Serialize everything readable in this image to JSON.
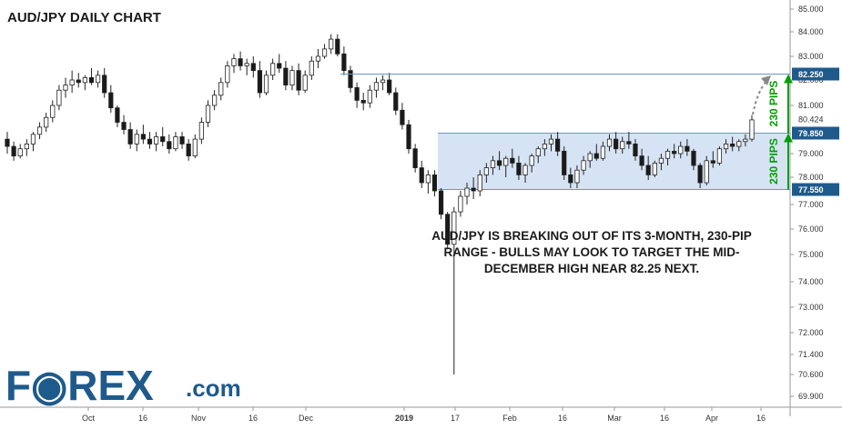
{
  "chart_data": {
    "type": "candlestick",
    "title": "AUD/JPY DAILY CHART",
    "y_ticks": [
      "85.000",
      "84.000",
      "83.000",
      "82.000",
      "81.000",
      "79.000",
      "78.000",
      "77.000",
      "76.000",
      "75.000",
      "74.000",
      "73.000",
      "72.000",
      "71.400",
      "70.600",
      "69.900"
    ],
    "ylim": [
      69.6,
      85.3
    ],
    "x_tick_labels": [
      "Oct",
      "16",
      "Nov",
      "16",
      "Dec",
      "2019",
      "17",
      "Feb",
      "16",
      "Mar",
      "16",
      "Apr",
      "16"
    ],
    "price_badges": [
      {
        "label": "82.250",
        "value": 82.25,
        "color": "#1e5a8c"
      },
      {
        "label": "80.424",
        "value": 80.424,
        "color": "plain"
      },
      {
        "label": "79.850",
        "value": 79.85,
        "color": "#1e5a8c"
      },
      {
        "label": "77.550",
        "value": 77.55,
        "color": "#1e5a8c"
      }
    ],
    "range_box": {
      "low": 77.55,
      "high": 79.85,
      "color": "#c8daf0"
    },
    "target_line": 82.25,
    "pips_labels": [
      "230 PIPS",
      "230 PIPS"
    ],
    "annotation": [
      "AUD/JPY IS BREAKING OUT OF ITS 3-MONTH, 230-PIP",
      "RANGE - BULLS MAY LOOK TO TARGET THE MID-",
      "DECEMBER HIGH NEAR 82.25 NEXT."
    ],
    "ohlc": [
      [
        79.6,
        79.9,
        79.0,
        79.3
      ],
      [
        79.3,
        79.5,
        78.7,
        78.9
      ],
      [
        78.9,
        79.4,
        78.8,
        79.2
      ],
      [
        79.2,
        79.6,
        78.9,
        79.4
      ],
      [
        79.4,
        79.9,
        79.1,
        79.8
      ],
      [
        79.8,
        80.3,
        79.6,
        80.1
      ],
      [
        80.1,
        80.7,
        79.9,
        80.5
      ],
      [
        80.5,
        81.2,
        80.3,
        81.0
      ],
      [
        81.0,
        81.8,
        80.8,
        81.6
      ],
      [
        81.6,
        82.1,
        81.3,
        81.8
      ],
      [
        81.8,
        82.4,
        81.5,
        82.0
      ],
      [
        82.0,
        82.3,
        81.7,
        81.9
      ],
      [
        81.9,
        82.2,
        81.6,
        82.1
      ],
      [
        82.1,
        82.5,
        81.8,
        81.9
      ],
      [
        81.9,
        82.4,
        81.7,
        82.2
      ],
      [
        82.2,
        82.5,
        81.3,
        81.5
      ],
      [
        81.5,
        81.8,
        80.7,
        80.9
      ],
      [
        80.9,
        81.0,
        80.1,
        80.3
      ],
      [
        80.3,
        80.6,
        79.8,
        80.0
      ],
      [
        80.0,
        80.3,
        79.2,
        79.4
      ],
      [
        79.4,
        80.0,
        79.1,
        79.8
      ],
      [
        79.8,
        80.2,
        79.4,
        79.6
      ],
      [
        79.6,
        79.9,
        79.2,
        79.4
      ],
      [
        79.4,
        79.9,
        79.1,
        79.7
      ],
      [
        79.7,
        80.1,
        79.3,
        79.5
      ],
      [
        79.5,
        79.8,
        79.0,
        79.2
      ],
      [
        79.2,
        79.9,
        79.1,
        79.7
      ],
      [
        79.7,
        79.9,
        79.2,
        79.4
      ],
      [
        79.4,
        79.6,
        78.7,
        78.9
      ],
      [
        78.9,
        79.8,
        78.8,
        79.6
      ],
      [
        79.6,
        80.5,
        79.4,
        80.3
      ],
      [
        80.3,
        81.2,
        80.1,
        81.0
      ],
      [
        81.0,
        81.6,
        80.8,
        81.4
      ],
      [
        81.4,
        82.1,
        81.2,
        81.9
      ],
      [
        81.9,
        82.8,
        81.7,
        82.6
      ],
      [
        82.6,
        83.1,
        82.3,
        82.9
      ],
      [
        82.9,
        83.2,
        82.4,
        82.6
      ],
      [
        82.6,
        82.9,
        82.2,
        82.7
      ],
      [
        82.7,
        83.0,
        82.1,
        82.4
      ],
      [
        82.4,
        82.8,
        81.3,
        81.5
      ],
      [
        81.5,
        82.4,
        81.4,
        82.2
      ],
      [
        82.2,
        82.9,
        82.0,
        82.7
      ],
      [
        82.7,
        83.1,
        82.3,
        82.5
      ],
      [
        82.5,
        82.8,
        81.6,
        81.8
      ],
      [
        81.8,
        82.6,
        81.6,
        82.4
      ],
      [
        82.4,
        82.7,
        81.4,
        81.6
      ],
      [
        81.6,
        82.4,
        81.5,
        82.2
      ],
      [
        82.2,
        83.0,
        82.0,
        82.8
      ],
      [
        82.8,
        83.3,
        82.5,
        83.0
      ],
      [
        83.0,
        83.5,
        82.9,
        83.3
      ],
      [
        83.3,
        83.9,
        83.1,
        83.7
      ],
      [
        83.7,
        83.9,
        83.0,
        83.1
      ],
      [
        83.1,
        83.4,
        82.2,
        82.4
      ],
      [
        82.4,
        82.6,
        81.5,
        81.7
      ],
      [
        81.7,
        81.9,
        80.9,
        81.2
      ],
      [
        81.2,
        81.5,
        80.8,
        81.1
      ],
      [
        81.1,
        81.8,
        80.9,
        81.6
      ],
      [
        81.6,
        82.1,
        81.3,
        81.9
      ],
      [
        81.9,
        82.2,
        81.6,
        82.0
      ],
      [
        82.0,
        82.3,
        81.4,
        81.5
      ],
      [
        81.5,
        81.7,
        80.6,
        80.8
      ],
      [
        80.8,
        81.1,
        80.0,
        80.2
      ],
      [
        80.2,
        80.4,
        79.0,
        79.2
      ],
      [
        79.2,
        79.4,
        78.2,
        78.4
      ],
      [
        78.4,
        78.7,
        77.6,
        77.8
      ],
      [
        77.8,
        78.3,
        77.4,
        78.1
      ],
      [
        78.1,
        78.3,
        77.3,
        77.5
      ],
      [
        77.5,
        77.6,
        76.4,
        76.6
      ],
      [
        76.6,
        76.7,
        75.2,
        75.4
      ],
      [
        75.4,
        76.9,
        70.6,
        76.7
      ],
      [
        76.7,
        77.5,
        76.5,
        77.3
      ],
      [
        77.3,
        77.8,
        77.0,
        77.6
      ],
      [
        77.6,
        78.0,
        77.2,
        77.5
      ],
      [
        77.5,
        78.3,
        77.3,
        78.1
      ],
      [
        78.1,
        78.6,
        77.8,
        78.4
      ],
      [
        78.4,
        78.9,
        78.1,
        78.7
      ],
      [
        78.7,
        79.1,
        78.3,
        78.5
      ],
      [
        78.5,
        78.9,
        78.0,
        78.8
      ],
      [
        78.8,
        79.2,
        78.4,
        78.6
      ],
      [
        78.6,
        78.9,
        77.9,
        78.1
      ],
      [
        78.1,
        78.6,
        77.8,
        78.5
      ],
      [
        78.5,
        79.0,
        78.2,
        78.9
      ],
      [
        78.9,
        79.3,
        78.6,
        79.2
      ],
      [
        79.2,
        79.6,
        78.9,
        79.4
      ],
      [
        79.4,
        79.8,
        79.1,
        79.6
      ],
      [
        79.6,
        79.9,
        78.9,
        79.1
      ],
      [
        79.1,
        79.3,
        77.9,
        78.1
      ],
      [
        78.1,
        78.4,
        77.6,
        77.8
      ],
      [
        77.8,
        78.5,
        77.6,
        78.3
      ],
      [
        78.3,
        78.9,
        78.1,
        78.7
      ],
      [
        78.7,
        79.1,
        78.4,
        79.0
      ],
      [
        79.0,
        79.4,
        78.7,
        78.8
      ],
      [
        78.8,
        79.5,
        78.7,
        79.3
      ],
      [
        79.3,
        79.8,
        79.1,
        79.6
      ],
      [
        79.6,
        79.9,
        79.0,
        79.2
      ],
      [
        79.2,
        79.7,
        79.0,
        79.5
      ],
      [
        79.5,
        79.9,
        79.2,
        79.4
      ],
      [
        79.4,
        79.6,
        78.7,
        78.9
      ],
      [
        78.9,
        79.2,
        78.3,
        78.5
      ],
      [
        78.5,
        78.9,
        77.9,
        78.1
      ],
      [
        78.1,
        78.7,
        78.0,
        78.6
      ],
      [
        78.6,
        79.0,
        78.3,
        78.8
      ],
      [
        78.8,
        79.2,
        78.5,
        79.1
      ],
      [
        79.1,
        79.4,
        78.8,
        79.0
      ],
      [
        79.0,
        79.5,
        78.8,
        79.3
      ],
      [
        79.3,
        79.6,
        78.9,
        79.1
      ],
      [
        79.1,
        79.2,
        78.3,
        78.5
      ],
      [
        78.5,
        78.6,
        77.6,
        77.8
      ],
      [
        77.8,
        78.9,
        77.7,
        78.7
      ],
      [
        78.7,
        79.1,
        78.4,
        78.6
      ],
      [
        78.6,
        79.3,
        78.5,
        79.2
      ],
      [
        79.2,
        79.6,
        79.0,
        79.4
      ],
      [
        79.4,
        79.7,
        79.1,
        79.3
      ],
      [
        79.3,
        79.6,
        79.1,
        79.5
      ],
      [
        79.5,
        79.8,
        79.3,
        79.6
      ],
      [
        79.6,
        80.6,
        79.5,
        80.4
      ]
    ]
  },
  "logo": {
    "brand": "F◉REX",
    "suffix": ".com"
  }
}
